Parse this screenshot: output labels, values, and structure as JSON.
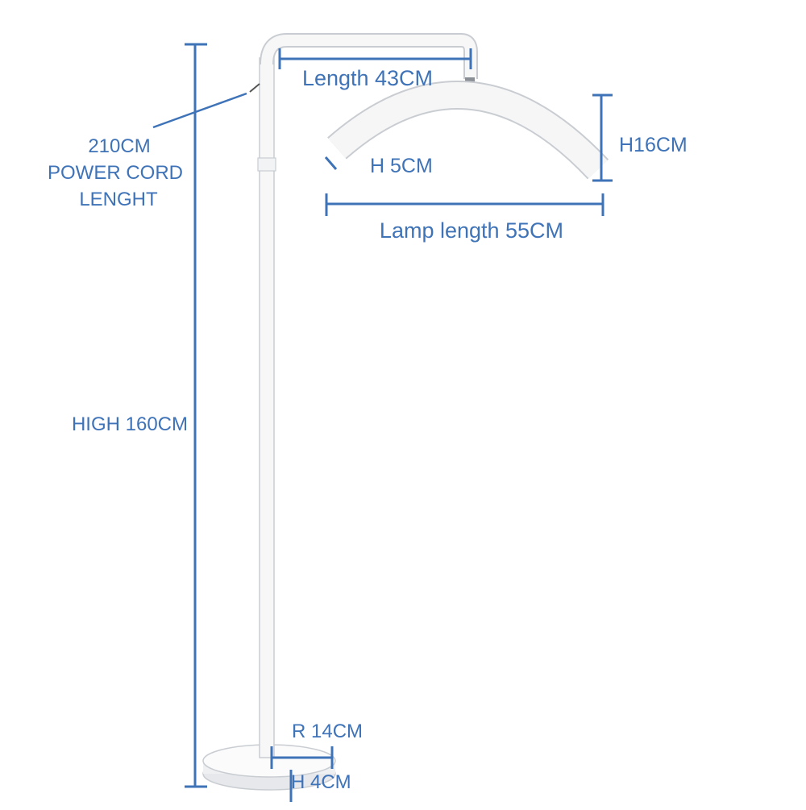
{
  "labels": {
    "arm_length": "Length 43CM",
    "cord_line1": "210CM",
    "cord_line2": "POWER CORD",
    "cord_line3": "LENGHT",
    "lamp_height": "H16CM",
    "lamp_thickness": "H 5CM",
    "lamp_length": "Lamp length 55CM",
    "total_height": "HIGH 160CM",
    "base_radius": "R 14CM",
    "base_height": "H 4CM"
  },
  "colors": {
    "dimension_blue": "#3f73b8",
    "lamp_white": "#f4f4f4",
    "lamp_outline": "#c9cdd2",
    "base_shadow": "#dcdfe3",
    "connector_gray": "#8a8f96"
  }
}
